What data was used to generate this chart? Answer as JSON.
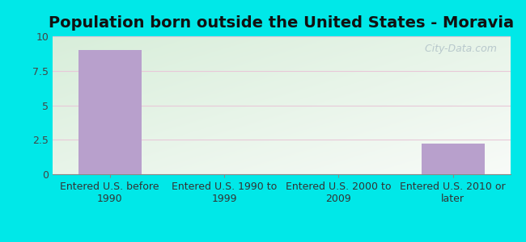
{
  "title": "Population born outside the United States - Moravia",
  "categories": [
    "Entered U.S. before\n1990",
    "Entered U.S. 1990 to\n1999",
    "Entered U.S. 2000 to\n2009",
    "Entered U.S. 2010 or\nlater"
  ],
  "values": [
    9.0,
    0,
    0,
    2.2
  ],
  "bar_color": "#b8a0cc",
  "ylim": [
    0,
    10
  ],
  "yticks": [
    0,
    2.5,
    5,
    7.5,
    10
  ],
  "ytick_labels": [
    "0",
    "2.5",
    "5",
    "7.5",
    "10"
  ],
  "background_outer": "#00e8e8",
  "background_inner_topleft": "#d8eeda",
  "background_inner_bottomright": "#f8fbf8",
  "grid_color": "#e8c8d8",
  "title_fontsize": 14,
  "tick_fontsize": 9,
  "watermark": "  City-Data.com",
  "watermark_color": "#b8c8cc"
}
